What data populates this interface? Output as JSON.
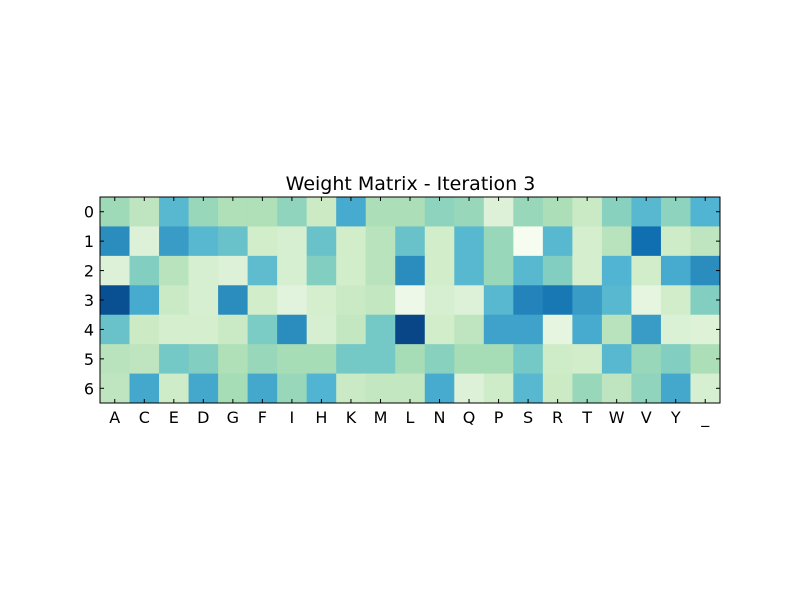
{
  "chart_data": {
    "type": "heatmap",
    "title": "Weight Matrix - Iteration 3",
    "xlabel": "",
    "ylabel": "",
    "x_categories": [
      "A",
      "C",
      "E",
      "D",
      "G",
      "F",
      "I",
      "H",
      "K",
      "M",
      "L",
      "N",
      "Q",
      "P",
      "S",
      "R",
      "T",
      "W",
      "V",
      "Y",
      "_"
    ],
    "y_categories": [
      "0",
      "1",
      "2",
      "3",
      "4",
      "5",
      "6"
    ],
    "colormap": "GnBu",
    "value_range": [
      0,
      1
    ],
    "values": [
      [
        0.4,
        0.3,
        0.6,
        0.42,
        0.35,
        0.35,
        0.44,
        0.25,
        0.65,
        0.36,
        0.36,
        0.45,
        0.42,
        0.15,
        0.42,
        0.36,
        0.26,
        0.46,
        0.6,
        0.45,
        0.62
      ],
      [
        0.75,
        0.15,
        0.7,
        0.6,
        0.55,
        0.22,
        0.18,
        0.55,
        0.22,
        0.32,
        0.55,
        0.22,
        0.6,
        0.42,
        0.0,
        0.6,
        0.2,
        0.32,
        0.85,
        0.24,
        0.3
      ],
      [
        0.15,
        0.48,
        0.32,
        0.18,
        0.15,
        0.58,
        0.18,
        0.48,
        0.22,
        0.32,
        0.75,
        0.22,
        0.6,
        0.42,
        0.6,
        0.48,
        0.2,
        0.62,
        0.22,
        0.65,
        0.75
      ],
      [
        0.95,
        0.65,
        0.26,
        0.18,
        0.75,
        0.22,
        0.12,
        0.2,
        0.26,
        0.28,
        0.05,
        0.18,
        0.15,
        0.6,
        0.78,
        0.82,
        0.7,
        0.6,
        0.1,
        0.22,
        0.48
      ],
      [
        0.55,
        0.25,
        0.2,
        0.2,
        0.26,
        0.5,
        0.75,
        0.18,
        0.28,
        0.52,
        0.98,
        0.22,
        0.3,
        0.68,
        0.68,
        0.1,
        0.65,
        0.32,
        0.7,
        0.16,
        0.14
      ],
      [
        0.32,
        0.3,
        0.52,
        0.48,
        0.35,
        0.42,
        0.38,
        0.38,
        0.52,
        0.52,
        0.38,
        0.46,
        0.38,
        0.38,
        0.52,
        0.24,
        0.22,
        0.6,
        0.42,
        0.48,
        0.36
      ],
      [
        0.3,
        0.66,
        0.24,
        0.66,
        0.38,
        0.66,
        0.42,
        0.62,
        0.26,
        0.28,
        0.28,
        0.65,
        0.15,
        0.24,
        0.6,
        0.25,
        0.42,
        0.3,
        0.44,
        0.66,
        0.18
      ]
    ]
  }
}
